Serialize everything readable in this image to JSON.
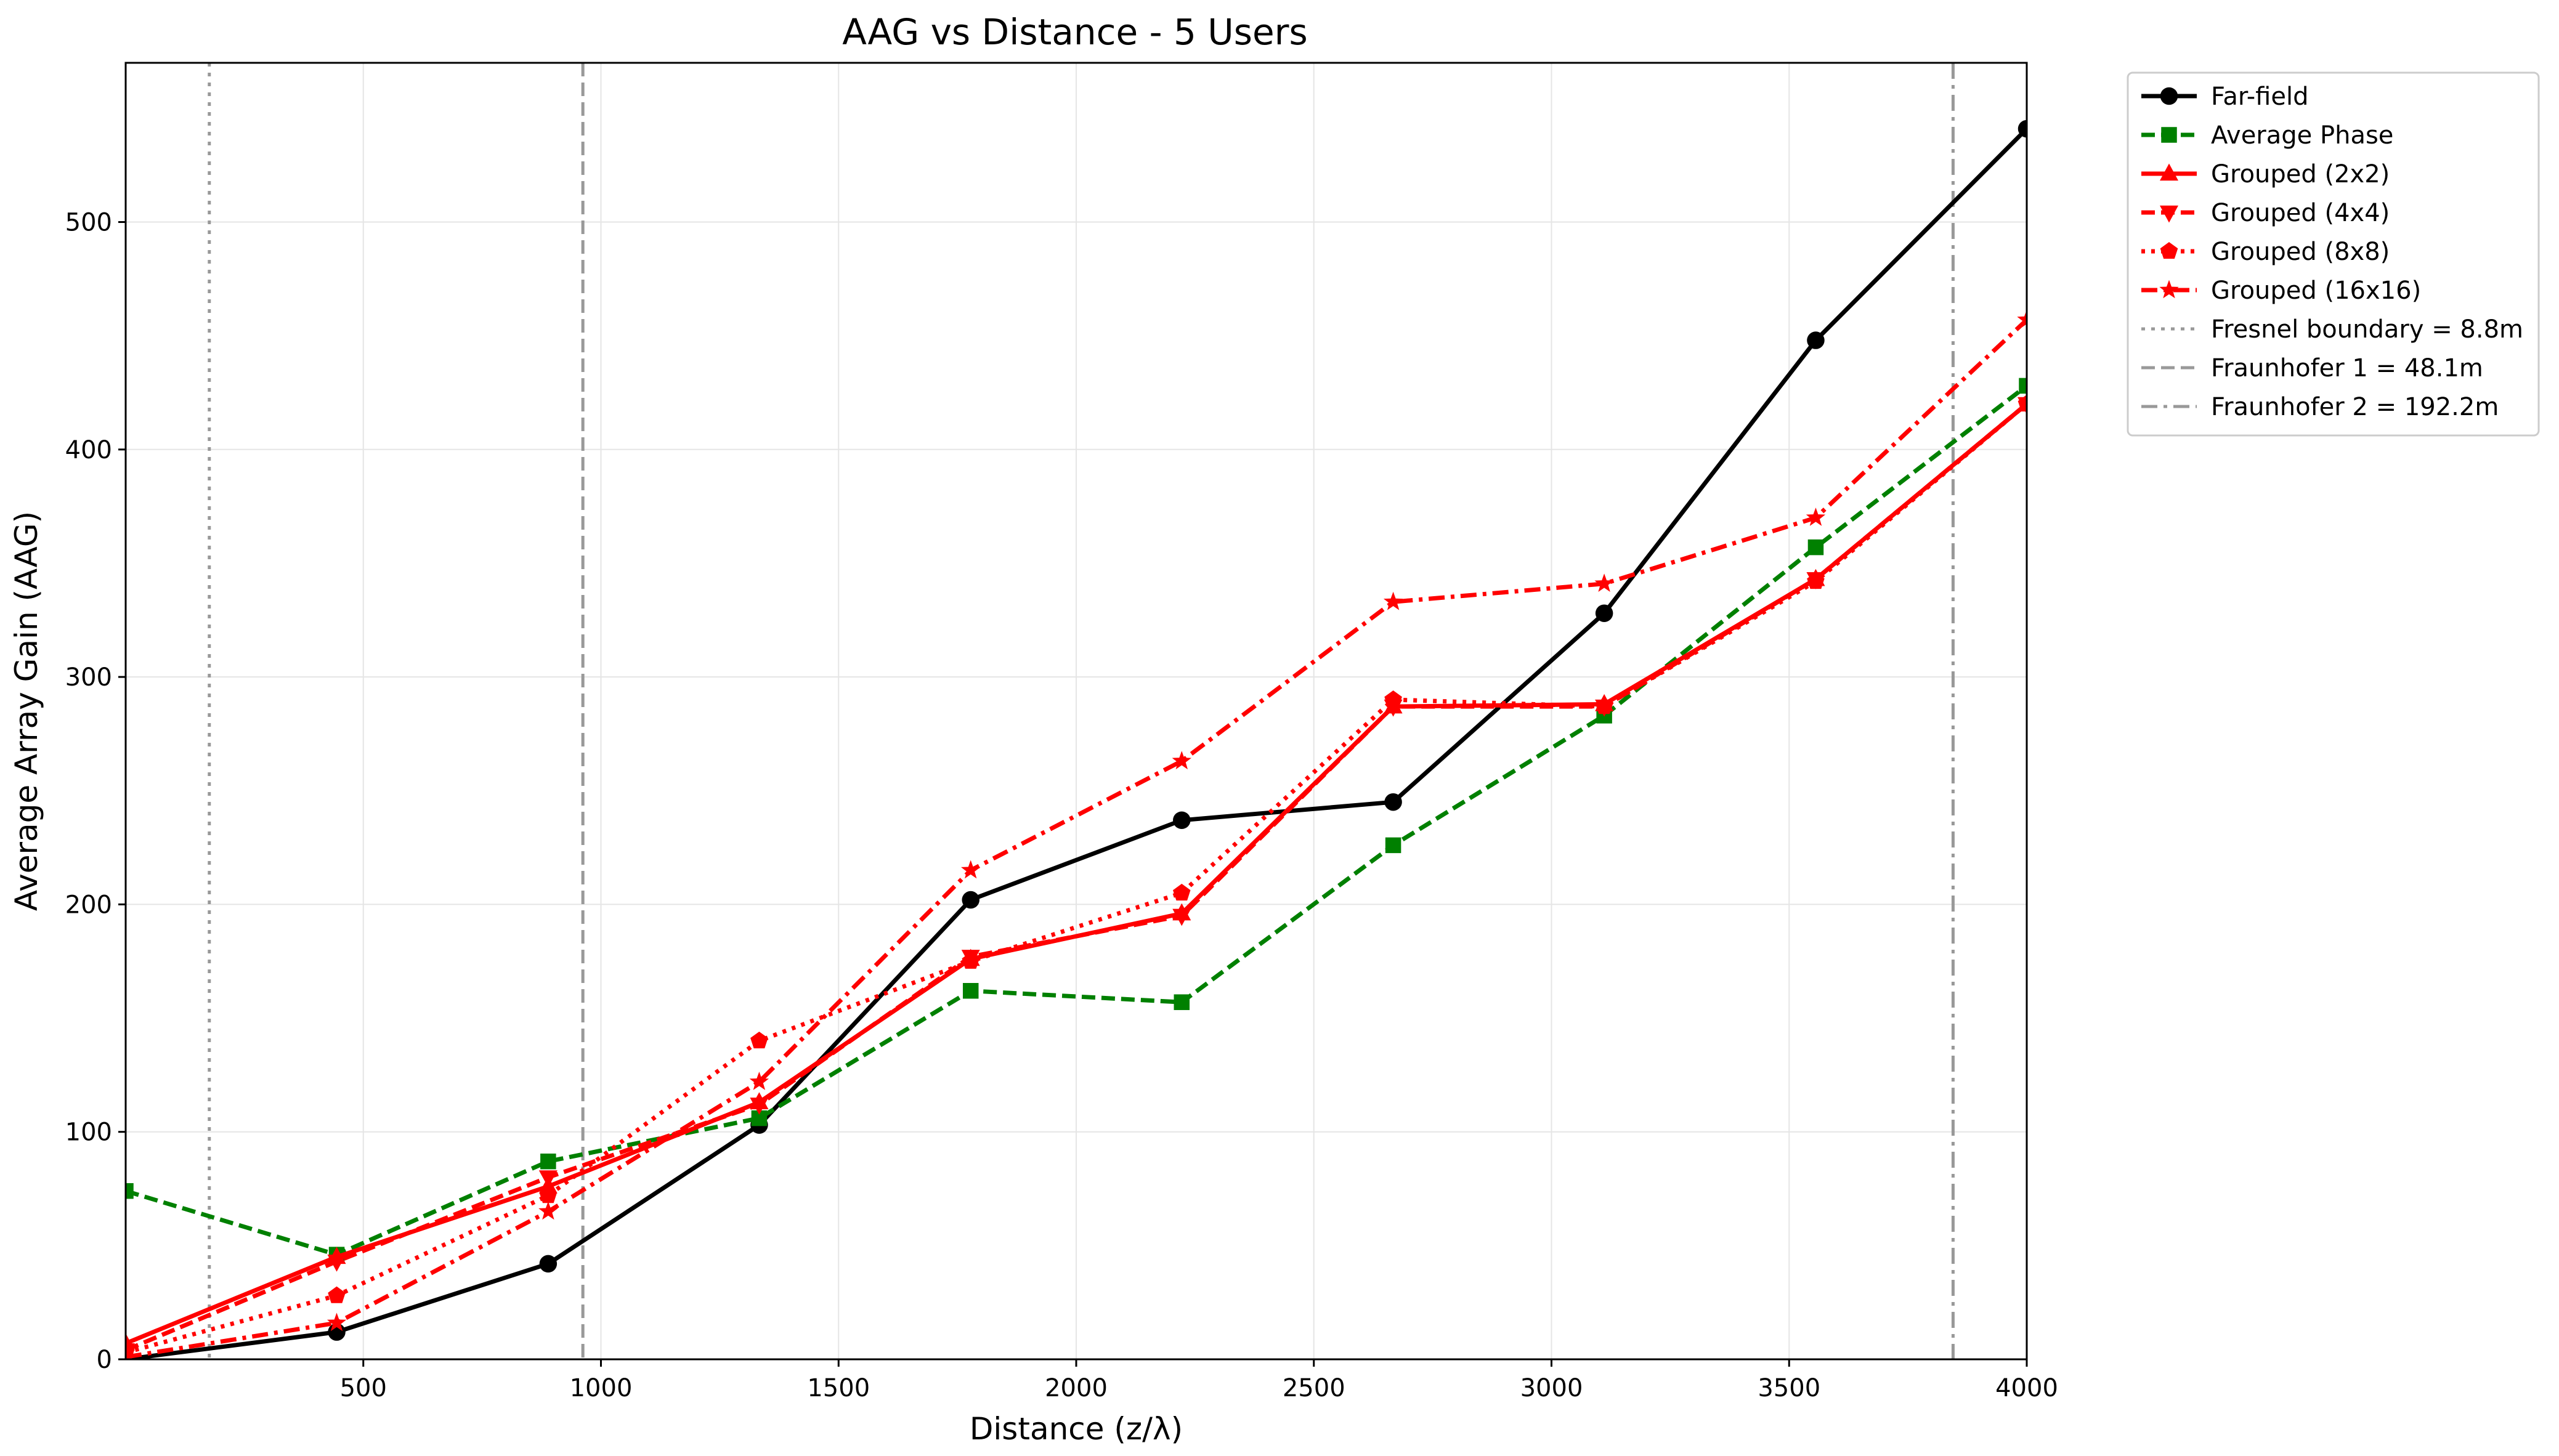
{
  "chart_data": {
    "type": "line",
    "title": "AAG vs Distance - 5 Users",
    "xlabel": "Distance (z/λ)",
    "ylabel": "Average Array Gain (AAG)",
    "xlim": [
      0,
      4000
    ],
    "ylim": [
      0,
      570
    ],
    "xticks": [
      500,
      1000,
      1500,
      2000,
      2500,
      3000,
      3500,
      4000
    ],
    "yticks": [
      0,
      100,
      200,
      300,
      400,
      500
    ],
    "grid": true,
    "legend_position": "outside-right-top",
    "x": [
      0,
      444,
      889,
      1333,
      1778,
      2222,
      2667,
      3111,
      3556,
      4000
    ],
    "series": [
      {
        "name": "Far-field",
        "color": "#000000",
        "dash": "solid",
        "marker": "circle",
        "values": [
          0,
          12,
          42,
          103,
          202,
          237,
          245,
          328,
          448,
          541
        ]
      },
      {
        "name": "Average Phase",
        "color": "#008000",
        "dash": "dashed",
        "marker": "square",
        "values": [
          74,
          46,
          87,
          106,
          162,
          157,
          226,
          283,
          357,
          428
        ]
      },
      {
        "name": "Grouped (2x2)",
        "color": "#ff0000",
        "dash": "solid",
        "marker": "triangle-up",
        "values": [
          7,
          45,
          76,
          113,
          176,
          196,
          287,
          288,
          343,
          420
        ]
      },
      {
        "name": "Grouped (4x4)",
        "color": "#ff0000",
        "dash": "dashed",
        "marker": "triangle-down",
        "values": [
          4,
          43,
          80,
          112,
          177,
          195,
          287,
          287,
          343,
          420
        ]
      },
      {
        "name": "Grouped (8x8)",
        "color": "#ff0000",
        "dash": "dotted",
        "marker": "pentagon",
        "values": [
          3,
          28,
          72,
          140,
          175,
          205,
          290,
          287,
          342,
          420
        ]
      },
      {
        "name": "Grouped (16x16)",
        "color": "#ff0000",
        "dash": "dashdot",
        "marker": "star",
        "values": [
          1,
          16,
          65,
          122,
          215,
          263,
          333,
          341,
          370,
          457
        ]
      }
    ],
    "vlines": [
      {
        "name": "Fresnel boundary = 8.8m",
        "x": 176,
        "color": "#999999",
        "dash": "dotted"
      },
      {
        "name": "Fraunhofer 1 = 48.1m",
        "x": 962,
        "color": "#999999",
        "dash": "dashed"
      },
      {
        "name": "Fraunhofer 2 = 192.2m",
        "x": 3845,
        "color": "#999999",
        "dash": "dashdot"
      }
    ]
  }
}
